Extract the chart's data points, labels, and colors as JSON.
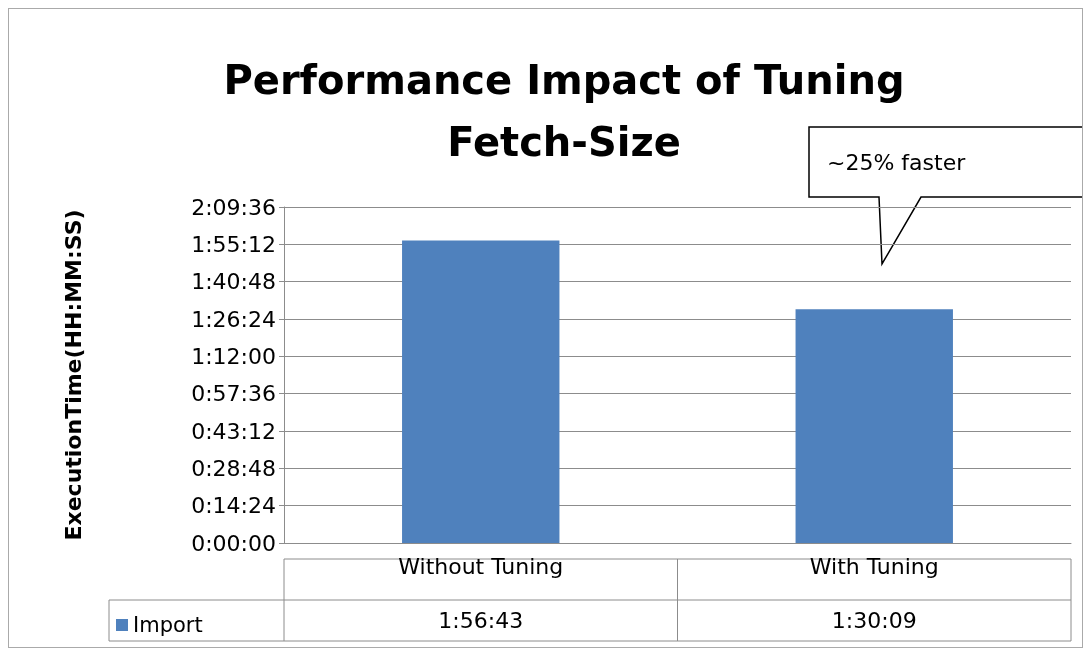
{
  "chart_data": {
    "type": "bar",
    "title": "Performance Impact of Tuning\nFetch-Size",
    "ylabel": "ExecutionTime(HH:MM:SS)",
    "categories": [
      "Without Tuning",
      "With Tuning"
    ],
    "series": [
      {
        "name": "Import",
        "color": "#4f81bd",
        "values": [
          7003,
          5409
        ],
        "value_labels": [
          "1:56:43",
          "1:30:09"
        ]
      }
    ],
    "ylim": [
      0,
      7776
    ],
    "yticks": [
      {
        "value": 0,
        "label": "0:00:00"
      },
      {
        "value": 864,
        "label": "0:14:24"
      },
      {
        "value": 1728,
        "label": "0:28:48"
      },
      {
        "value": 2592,
        "label": "0:43:12"
      },
      {
        "value": 3456,
        "label": "0:57:36"
      },
      {
        "value": 4320,
        "label": "1:12:00"
      },
      {
        "value": 5184,
        "label": "1:26:24"
      },
      {
        "value": 6048,
        "label": "1:40:48"
      },
      {
        "value": 6912,
        "label": "1:55:12"
      },
      {
        "value": 7776,
        "label": "2:09:36"
      }
    ],
    "grid": "y",
    "legend": "bottom left",
    "annotations": [
      "~25% faster"
    ]
  }
}
